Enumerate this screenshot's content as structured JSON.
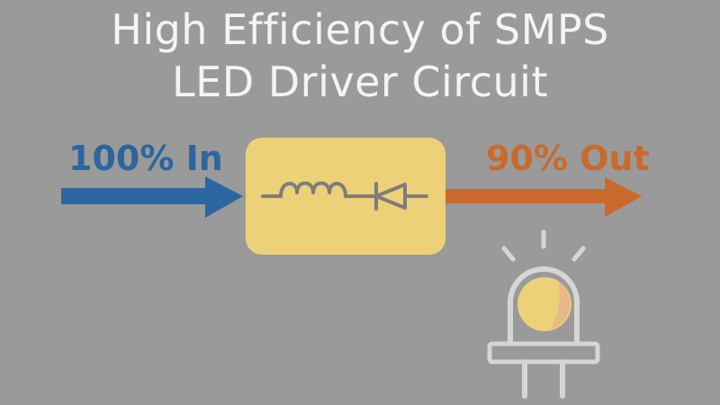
{
  "title": {
    "line1": "High Efficiency of SMPS",
    "line2": "LED Driver Circuit"
  },
  "input": {
    "label": "100% In",
    "color": "#2c66a0"
  },
  "output": {
    "label": "90% Out",
    "color": "#c96a2c"
  },
  "converter": {
    "color": "#edd178",
    "symbols": [
      "inductor-icon",
      "diode-icon"
    ]
  },
  "led": {
    "icon": "led-icon",
    "colors": [
      "#edd178",
      "#e8b98a"
    ]
  }
}
